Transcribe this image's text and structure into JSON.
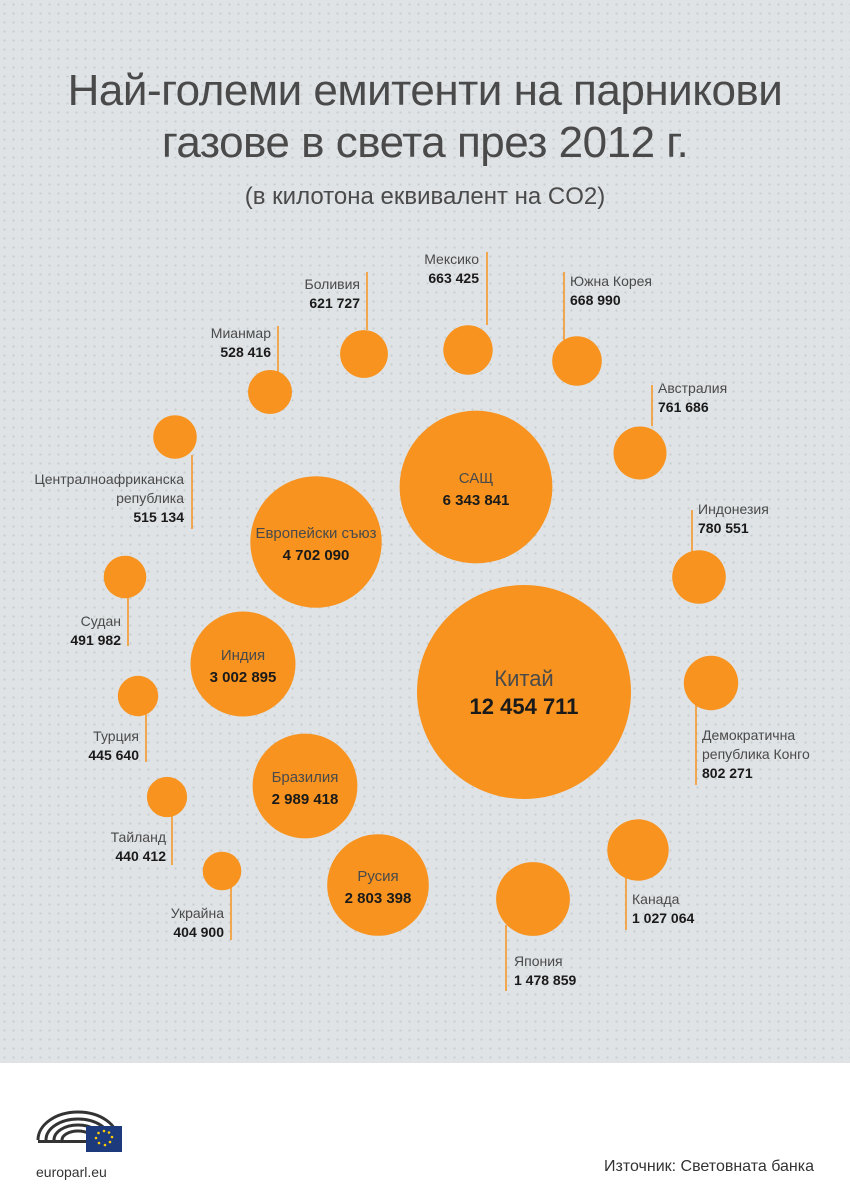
{
  "title_line1": "Най-големи емитенти на парникови",
  "title_line2": "газове в света през 2012 г.",
  "subtitle": "(в килотона еквивалент на CO2)",
  "source": "Източник: Световната банка",
  "site": "europarl.eu",
  "colors": {
    "bubble": "#f7931e",
    "leader": "#f7931e",
    "text": "#4a4a4a",
    "value": "#1a1a1a"
  },
  "chart_data": {
    "type": "bubble",
    "unit": "килотона еквивалент на CO2",
    "items": [
      {
        "name": "Китай",
        "value": 12454711,
        "value_label": "12 454 711"
      },
      {
        "name": "САЩ",
        "value": 6343841,
        "value_label": "6 343 841"
      },
      {
        "name": "Европейски съюз",
        "value": 4702090,
        "value_label": "4 702 090"
      },
      {
        "name": "Индия",
        "value": 3002895,
        "value_label": "3 002 895"
      },
      {
        "name": "Бразилия",
        "value": 2989418,
        "value_label": "2 989 418"
      },
      {
        "name": "Русия",
        "value": 2803398,
        "value_label": "2 803 398"
      },
      {
        "name": "Япония",
        "value": 1478859,
        "value_label": "1 478 859"
      },
      {
        "name": "Канада",
        "value": 1027064,
        "value_label": "1 027 064"
      },
      {
        "name": "Демократична републикa Конго",
        "value": 802271,
        "value_label": "802 271"
      },
      {
        "name": "Индонезия",
        "value": 780551,
        "value_label": "780 551"
      },
      {
        "name": "Австралия",
        "value": 761686,
        "value_label": "761 686"
      },
      {
        "name": "Южна Корея",
        "value": 668990,
        "value_label": "668 990"
      },
      {
        "name": "Мексико",
        "value": 663425,
        "value_label": "663 425"
      },
      {
        "name": "Боливия",
        "value": 621727,
        "value_label": "621 727"
      },
      {
        "name": "Мианмар",
        "value": 528416,
        "value_label": "528 416"
      },
      {
        "name": "Централноафриканска република",
        "value": 515134,
        "value_label": "515 134"
      },
      {
        "name": "Судан",
        "value": 491982,
        "value_label": "491 982"
      },
      {
        "name": "Турция",
        "value": 445640,
        "value_label": "445 640"
      },
      {
        "name": "Тайланд",
        "value": 440412,
        "value_label": "440 412"
      },
      {
        "name": "Украйна",
        "value": 404900,
        "value_label": "404 900"
      }
    ]
  }
}
